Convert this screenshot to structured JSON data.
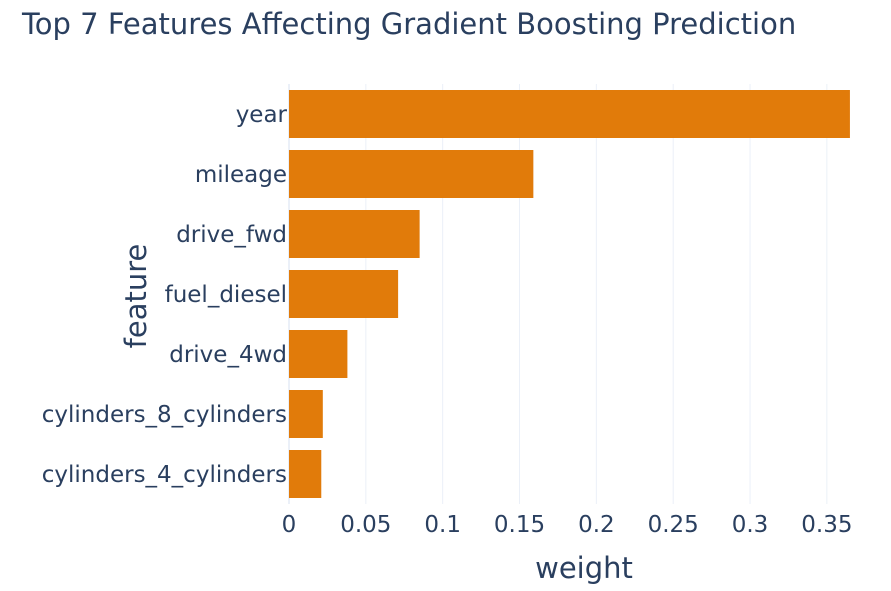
{
  "chart_data": {
    "type": "bar",
    "orientation": "horizontal",
    "title": "Top 7 Features Affecting Gradient Boosting Prediction",
    "xlabel": "weight",
    "ylabel": "feature",
    "categories": [
      "year",
      "mileage",
      "drive_fwd",
      "fuel_diesel",
      "drive_4wd",
      "cylinders_8_cylinders",
      "cylinders_4_cylinders"
    ],
    "values": [
      0.365,
      0.159,
      0.085,
      0.071,
      0.038,
      0.022,
      0.021
    ],
    "xlim": [
      0,
      0.367
    ],
    "xticks": [
      0,
      0.05,
      0.1,
      0.15,
      0.2,
      0.25,
      0.3,
      0.35
    ],
    "xtick_labels": [
      "0",
      "0.05",
      "0.1",
      "0.15",
      "0.2",
      "0.25",
      "0.3",
      "0.35"
    ],
    "grid": true,
    "bar_color": "#e17b0a",
    "text_color": "#2a3f5f",
    "grid_color": "#ebf0f8"
  }
}
